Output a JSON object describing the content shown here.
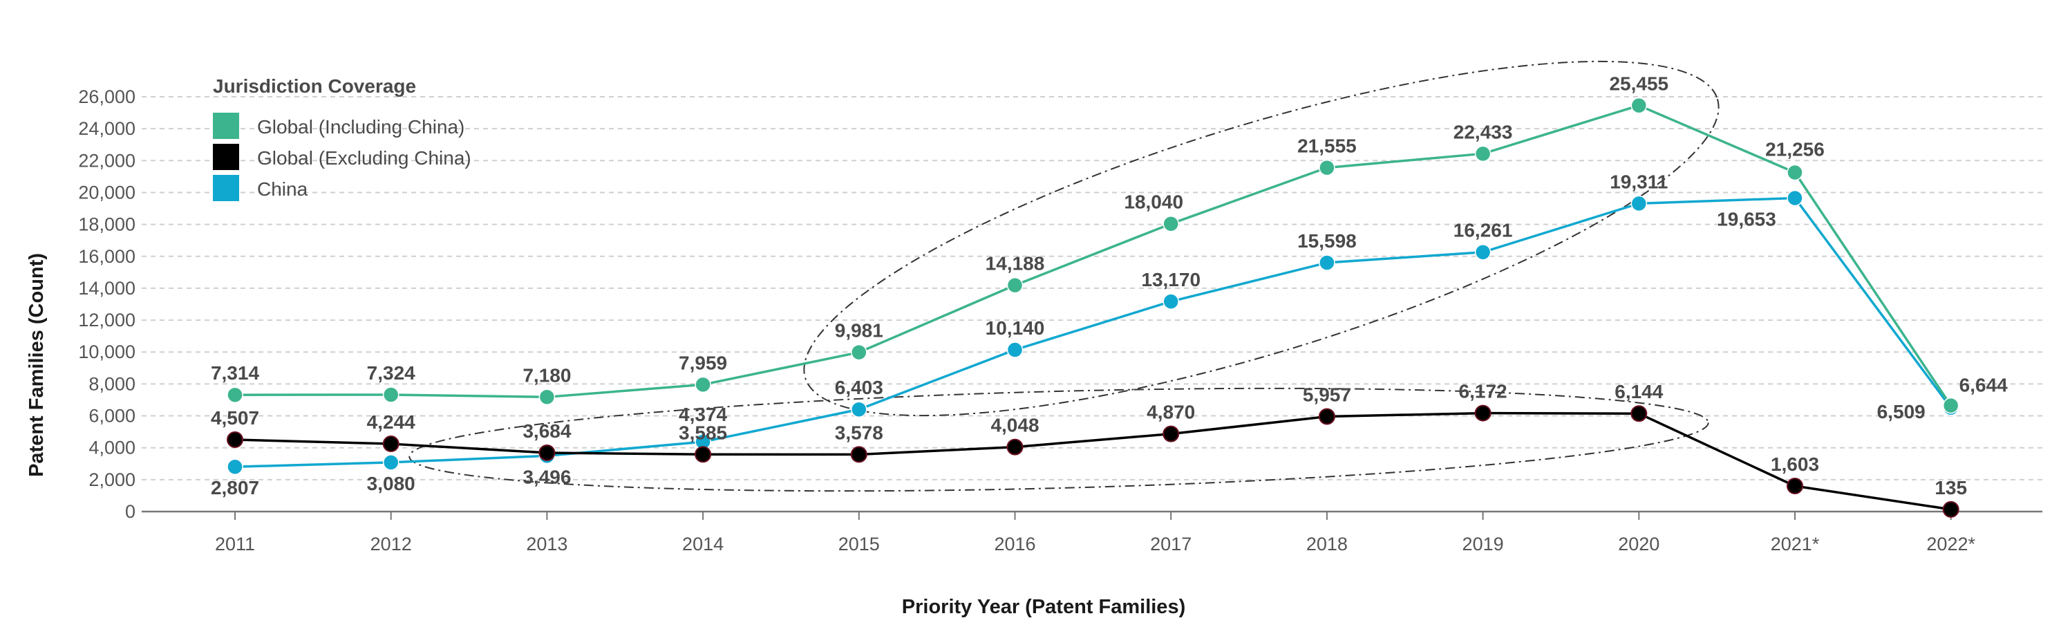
{
  "chart_data": {
    "type": "line",
    "title": "",
    "xlabel": "Priority Year (Patent Families)",
    "ylabel": "Patent Families (Count)",
    "categories": [
      "2011",
      "2012",
      "2013",
      "2014",
      "2015",
      "2016",
      "2017",
      "2018",
      "2019",
      "2020",
      "2021*",
      "2022*"
    ],
    "ylim": [
      0,
      26000
    ],
    "yticks": [
      0,
      2000,
      4000,
      6000,
      8000,
      10000,
      12000,
      14000,
      16000,
      18000,
      20000,
      22000,
      24000,
      26000
    ],
    "ytick_labels": [
      "0",
      "2,000",
      "4,000",
      "6,000",
      "8,000",
      "10,000",
      "12,000",
      "14,000",
      "16,000",
      "18,000",
      "20,000",
      "22,000",
      "24,000",
      "26,000"
    ],
    "grid": true,
    "legend": {
      "title": "Jurisdiction Coverage",
      "placement": "top-left"
    },
    "series": [
      {
        "name": "Global (Including China)",
        "color": "#3cb48e",
        "values": [
          7314,
          7324,
          7180,
          7959,
          9981,
          14188,
          18040,
          21555,
          22433,
          25455,
          21256,
          6644
        ],
        "labels": [
          "7,314",
          "7,324",
          "7,180",
          "7,959",
          "9,981",
          "14,188",
          "18,040",
          "21,555",
          "22,433",
          "25,455",
          "21,256",
          "6,644"
        ]
      },
      {
        "name": "Global (Excluding China)",
        "color": "#000000",
        "values": [
          4507,
          4244,
          3684,
          3585,
          3578,
          4048,
          4870,
          5957,
          6172,
          6144,
          1603,
          135
        ],
        "labels": [
          "4,507",
          "4,244",
          "3,684",
          "3,585",
          "3,578",
          "4,048",
          "4,870",
          "5,957",
          "6,172",
          "6,144",
          "1,603",
          "135"
        ]
      },
      {
        "name": "China",
        "color": "#11a8d0",
        "values": [
          2807,
          3080,
          3496,
          4374,
          6403,
          10140,
          13170,
          15598,
          16261,
          19311,
          19653,
          6509
        ],
        "labels": [
          "2,807",
          "3,080",
          "3,496",
          "4,374",
          "6,403",
          "10,140",
          "13,170",
          "15,598",
          "16,261",
          "19,311",
          "19,653",
          "6,509"
        ]
      }
    ]
  }
}
